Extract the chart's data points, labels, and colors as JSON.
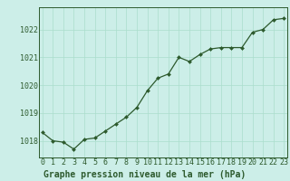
{
  "x": [
    0,
    1,
    2,
    3,
    4,
    5,
    6,
    7,
    8,
    9,
    10,
    11,
    12,
    13,
    14,
    15,
    16,
    17,
    18,
    19,
    20,
    21,
    22,
    23
  ],
  "y": [
    1018.3,
    1018.0,
    1017.95,
    1017.7,
    1018.05,
    1018.1,
    1018.35,
    1018.6,
    1018.85,
    1019.2,
    1019.8,
    1020.25,
    1020.4,
    1021.0,
    1020.85,
    1021.1,
    1021.3,
    1021.35,
    1021.35,
    1021.35,
    1021.9,
    1022.0,
    1022.35,
    1022.4
  ],
  "line_color": "#2d5a2d",
  "marker_color": "#2d5a2d",
  "bg_color": "#cceee8",
  "grid_color": "#aaddcc",
  "title": "Graphe pression niveau de la mer (hPa)",
  "ylim": [
    1017.4,
    1022.8
  ],
  "yticks": [
    1018,
    1019,
    1020,
    1021,
    1022
  ],
  "xlim": [
    -0.3,
    23.3
  ],
  "title_color": "#2d5a2d",
  "title_fontsize": 7.0,
  "tick_fontsize": 6.0,
  "axis_color": "#2d5a2d",
  "spine_color": "#2d5a2d"
}
